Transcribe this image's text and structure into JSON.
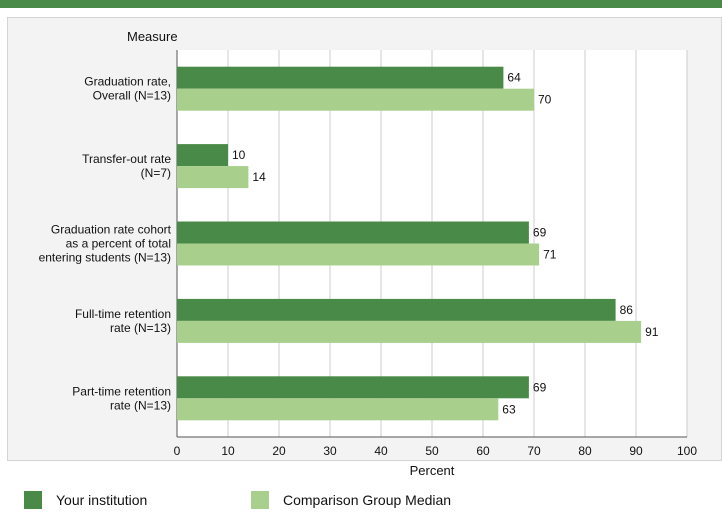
{
  "chart_data": {
    "type": "bar",
    "orientation": "horizontal",
    "ylabel": "Measure",
    "xlabel": "Percent",
    "xlim": [
      0,
      100
    ],
    "xticks": [
      0,
      10,
      20,
      30,
      40,
      50,
      60,
      70,
      80,
      90,
      100
    ],
    "grid": true,
    "legend_position": "bottom",
    "categories": [
      [
        "Graduation rate,",
        "Overall (N=13)"
      ],
      [
        "Transfer-out rate",
        "(N=7)"
      ],
      [
        "Graduation rate cohort",
        "as a percent of total",
        "entering students (N=13)"
      ],
      [
        "Full-time retention",
        "rate (N=13)"
      ],
      [
        "Part-time retention",
        "rate (N=13)"
      ]
    ],
    "series": [
      {
        "name": "Your institution",
        "color": "#4a8a48",
        "values": [
          64,
          10,
          69,
          86,
          69
        ]
      },
      {
        "name": "Comparison Group Median",
        "color": "#a9cf8d",
        "values": [
          70,
          14,
          71,
          91,
          63
        ]
      }
    ]
  }
}
